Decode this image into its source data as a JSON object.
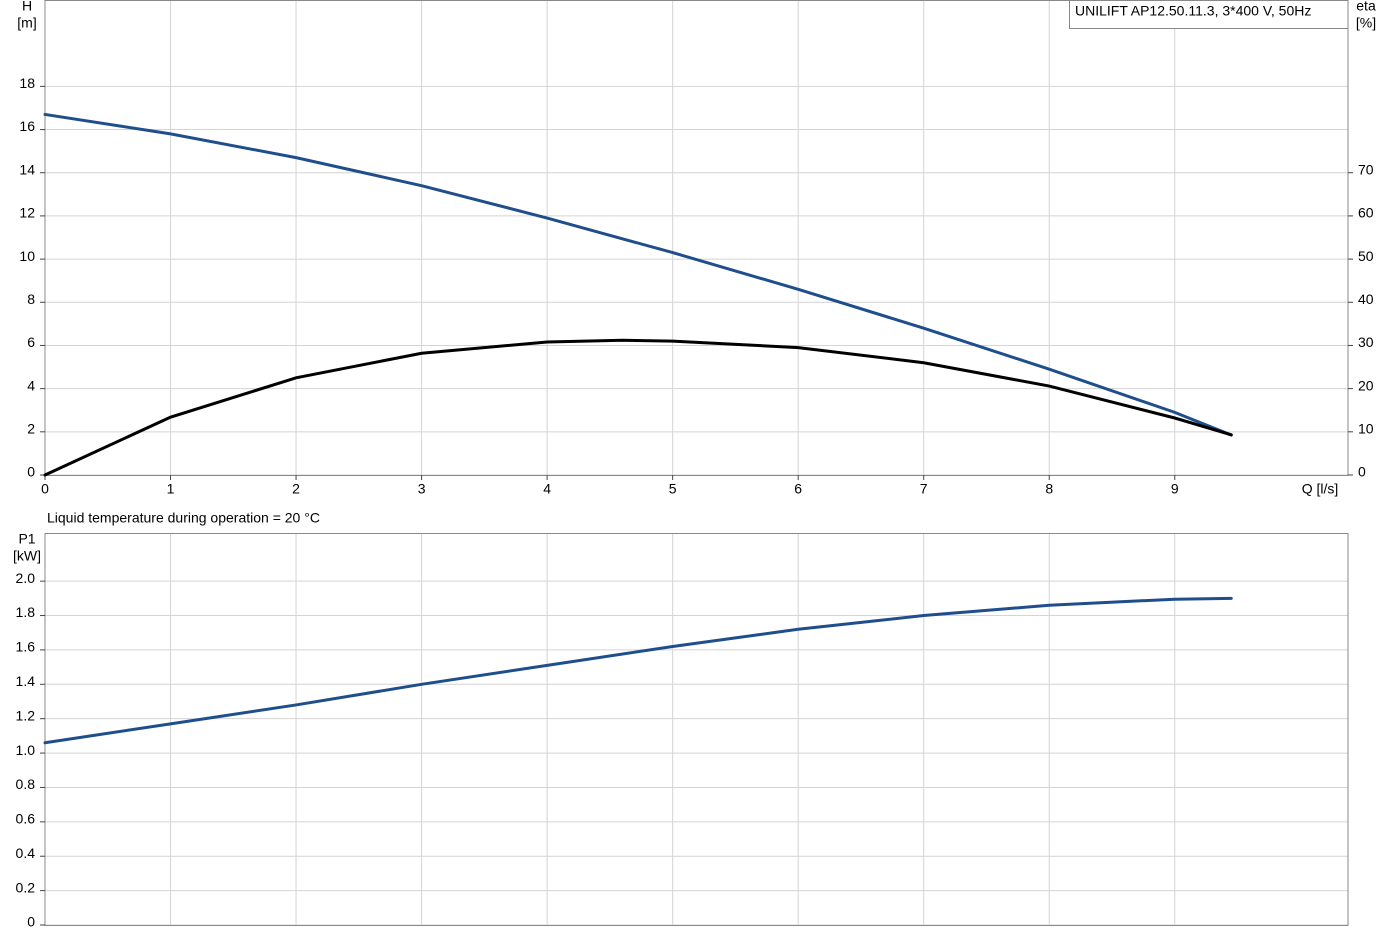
{
  "chart_data": [
    {
      "type": "line",
      "title": "UNILIFT AP12.50.11.3, 3*400 V, 50Hz",
      "ylabel": [
        "H",
        "[m]"
      ],
      "y2label": [
        "eta",
        "[%]"
      ],
      "xlabel": "Q [l/s]",
      "xlim": [
        0,
        10.38
      ],
      "xticks": [
        0,
        1,
        2,
        3,
        4,
        5,
        6,
        7,
        8,
        9
      ],
      "ylim": [
        0,
        22
      ],
      "yticks": [
        0,
        2,
        4,
        6,
        8,
        10,
        12,
        14,
        16,
        18
      ],
      "y2lim": [
        0,
        110
      ],
      "y2ticks": [
        0,
        10,
        20,
        30,
        40,
        50,
        60,
        70
      ],
      "grid": true,
      "series": [
        {
          "name": "H",
          "color": "#1f4e8c",
          "x": [
            0,
            1,
            2,
            3,
            4,
            5,
            6,
            7,
            8,
            9,
            9.45
          ],
          "values": [
            16.7,
            15.8,
            14.7,
            13.4,
            11.9,
            10.3,
            8.6,
            6.8,
            4.9,
            2.9,
            1.85
          ]
        },
        {
          "name": "eta",
          "color": "#000000",
          "axis": "y2",
          "x": [
            0,
            1,
            2,
            3,
            4,
            4.6,
            5,
            6,
            7,
            8,
            9,
            9.45
          ],
          "values": [
            0,
            13.4,
            22.5,
            28.2,
            30.8,
            31.2,
            31,
            29.5,
            26,
            20.6,
            13.2,
            9.3
          ]
        }
      ]
    },
    {
      "type": "line",
      "title": "Liquid temperature during operation = 20 °C",
      "ylabel": [
        "P1",
        "[kW]"
      ],
      "xlim": [
        0,
        10.38
      ],
      "xticks": [
        0,
        1,
        2,
        3,
        4,
        5,
        6,
        7,
        8,
        9
      ],
      "ylim": [
        0,
        2.28
      ],
      "yticks": [
        0,
        0.2,
        0.4,
        0.6,
        0.8,
        {
          "value": 1,
          "label": "1.0"
        },
        1.2,
        1.4,
        1.6,
        1.8,
        {
          "value": 2,
          "label": "2.0"
        }
      ],
      "grid": true,
      "series": [
        {
          "name": "P1",
          "color": "#1f4e8c",
          "x": [
            0,
            1,
            2,
            3,
            4,
            5,
            6,
            7,
            8,
            9,
            9.45
          ],
          "values": [
            1.06,
            1.17,
            1.28,
            1.4,
            1.51,
            1.62,
            1.72,
            1.8,
            1.86,
            1.895,
            1.9
          ]
        }
      ]
    }
  ]
}
